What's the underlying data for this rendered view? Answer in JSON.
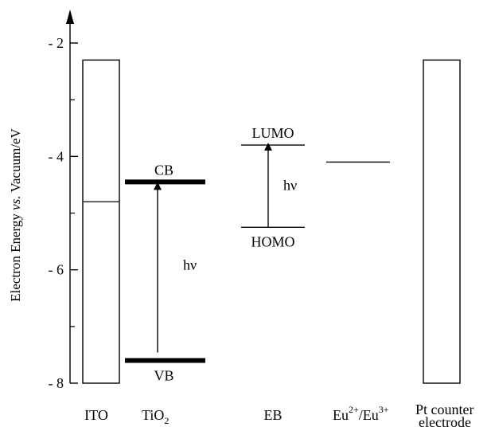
{
  "axis": {
    "label_main": "Electron Energy ",
    "label_italic": "vs.",
    "label_tail": " Vacuum/eV",
    "ticks": [
      {
        "value": -2,
        "label": "- 2"
      },
      {
        "value": -4,
        "label": "- 4"
      },
      {
        "value": -6,
        "label": "- 6"
      },
      {
        "value": -8,
        "label": "- 8"
      }
    ],
    "minor_ticks": [
      -3,
      -5,
      -7
    ],
    "range": [
      -8,
      -2
    ]
  },
  "components": {
    "ito": {
      "label": "ITO",
      "top": -2.3,
      "bottom": -8.0,
      "fermi": -4.8
    },
    "tio2": {
      "label_main": "TiO",
      "label_sub": "2",
      "cb_label": "CB",
      "cb": -4.45,
      "vb_label": "VB",
      "vb": -7.6,
      "transition_label": "hν"
    },
    "eb": {
      "label": "EB",
      "lumo_label": "LUMO",
      "lumo": -3.8,
      "homo_label": "HOMO",
      "homo": -5.25,
      "transition_label": "hν"
    },
    "eu": {
      "label_a": "Eu",
      "sup_a": "2+",
      "label_sep": "/Eu",
      "sup_b": "3+",
      "level": -4.1
    },
    "pt": {
      "label_line1": "Pt counter",
      "label_line2": "electrode",
      "top": -2.3,
      "bottom": -8.0
    }
  }
}
